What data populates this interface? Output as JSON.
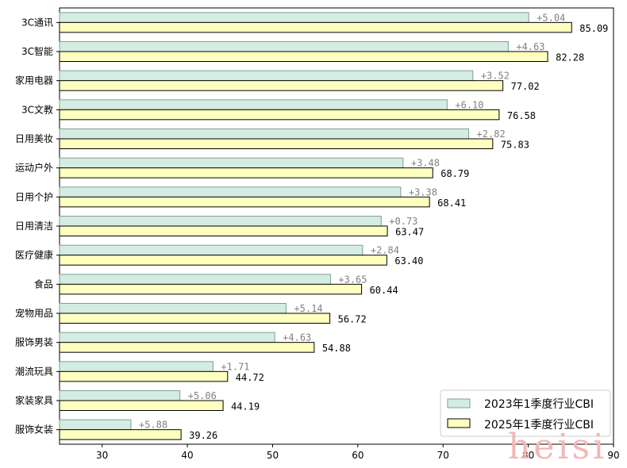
{
  "chart_data": {
    "type": "bar",
    "orientation": "horizontal",
    "title": "",
    "xlabel": "",
    "ylabel": "",
    "xlim": [
      25,
      90
    ],
    "xticks": [
      30,
      40,
      50,
      60,
      70,
      80,
      90
    ],
    "grid": false,
    "legend_position": "bottom-right",
    "categories": [
      "3C通讯",
      "3C智能",
      "家用电器",
      "3C文教",
      "日用美妆",
      "运动户外",
      "日用个护",
      "日用清洁",
      "医疗健康",
      "食品",
      "宠物用品",
      "服饰男装",
      "潮流玩具",
      "家装家具",
      "服饰女装"
    ],
    "series": [
      {
        "name": "2023年1季度行业CBI",
        "color": "#d4ece2",
        "values": [
          80.05,
          77.65,
          73.5,
          70.48,
          73.01,
          65.31,
          65.03,
          62.74,
          60.56,
          56.79,
          51.58,
          50.25,
          43.01,
          39.13,
          33.38
        ]
      },
      {
        "name": "2025年1季度行业CBI",
        "color": "#ffffc0",
        "values": [
          85.09,
          82.28,
          77.02,
          76.58,
          75.83,
          68.79,
          68.41,
          63.47,
          63.4,
          60.44,
          56.72,
          54.88,
          44.72,
          44.19,
          39.26
        ]
      }
    ],
    "value_labels": [
      "85.09",
      "82.28",
      "77.02",
      "76.58",
      "75.83",
      "68.79",
      "68.41",
      "63.47",
      "63.40",
      "60.44",
      "56.72",
      "54.88",
      "44.72",
      "44.19",
      "39.26"
    ],
    "diff_labels": [
      "+5.04",
      "+4.63",
      "+3.52",
      "+6.10",
      "+2.82",
      "+3.48",
      "+3.38",
      "+0.73",
      "+2.84",
      "+3.65",
      "+5.14",
      "+4.63",
      "+1.71",
      "+5.06",
      "+5.88"
    ]
  },
  "watermark": "heisi"
}
